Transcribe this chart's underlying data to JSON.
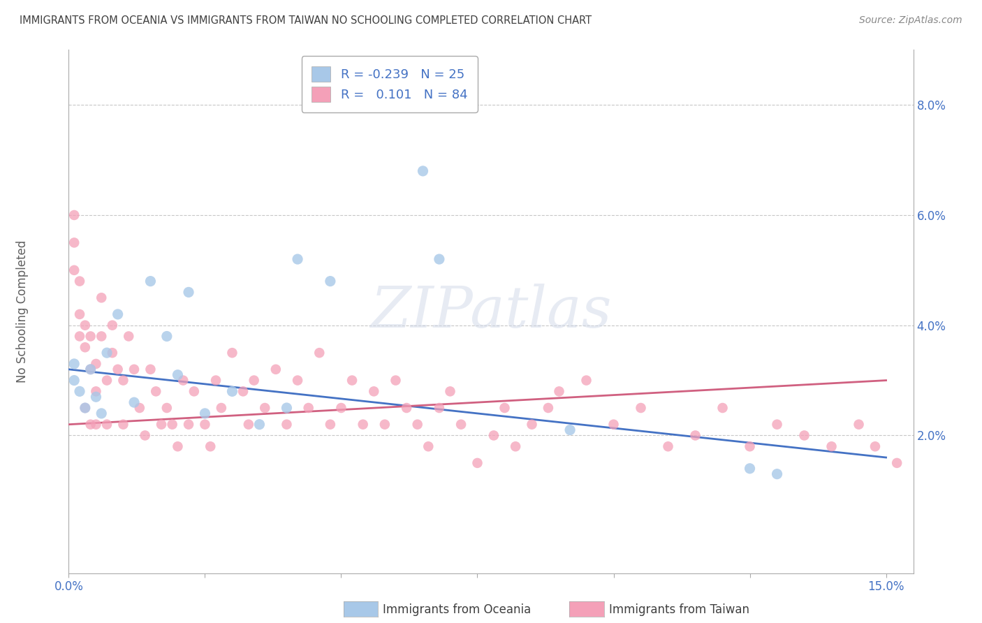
{
  "title": "IMMIGRANTS FROM OCEANIA VS IMMIGRANTS FROM TAIWAN NO SCHOOLING COMPLETED CORRELATION CHART",
  "source": "Source: ZipAtlas.com",
  "ylabel": "No Schooling Completed",
  "ytick_vals": [
    0.02,
    0.04,
    0.06,
    0.08
  ],
  "ytick_labels": [
    "2.0%",
    "4.0%",
    "6.0%",
    "8.0%"
  ],
  "xtick_vals": [
    0.0,
    0.025,
    0.05,
    0.075,
    0.1,
    0.125,
    0.15
  ],
  "xtick_labels": [
    "0.0%",
    "",
    "",
    "",
    "",
    "",
    "15.0%"
  ],
  "xlim": [
    0.0,
    0.155
  ],
  "ylim": [
    -0.005,
    0.09
  ],
  "legend_blue_r": "-0.239",
  "legend_blue_n": "25",
  "legend_pink_r": "0.101",
  "legend_pink_n": "84",
  "blue_scatter_color": "#a8c8e8",
  "pink_scatter_color": "#f4a0b8",
  "blue_line_color": "#4472c4",
  "pink_line_color": "#d06080",
  "bg_color": "#ffffff",
  "grid_color": "#c8c8c8",
  "title_color": "#404040",
  "label_color": "#606060",
  "axis_label_color": "#4472c4",
  "watermark_text": "ZIPatlas",
  "blue_line_y0": 0.032,
  "blue_line_y1": 0.016,
  "pink_line_y0": 0.022,
  "pink_line_y1": 0.03,
  "oceania_x": [
    0.001,
    0.001,
    0.002,
    0.003,
    0.004,
    0.005,
    0.006,
    0.007,
    0.009,
    0.012,
    0.015,
    0.018,
    0.02,
    0.022,
    0.025,
    0.03,
    0.035,
    0.04,
    0.042,
    0.048,
    0.065,
    0.068,
    0.092,
    0.125,
    0.13
  ],
  "oceania_y": [
    0.03,
    0.033,
    0.028,
    0.025,
    0.032,
    0.027,
    0.024,
    0.035,
    0.042,
    0.026,
    0.048,
    0.038,
    0.031,
    0.046,
    0.024,
    0.028,
    0.022,
    0.025,
    0.052,
    0.048,
    0.068,
    0.052,
    0.021,
    0.014,
    0.013
  ],
  "taiwan_x": [
    0.001,
    0.001,
    0.001,
    0.002,
    0.002,
    0.002,
    0.003,
    0.003,
    0.003,
    0.004,
    0.004,
    0.004,
    0.005,
    0.005,
    0.005,
    0.006,
    0.006,
    0.007,
    0.007,
    0.008,
    0.008,
    0.009,
    0.01,
    0.01,
    0.011,
    0.012,
    0.013,
    0.014,
    0.015,
    0.016,
    0.017,
    0.018,
    0.019,
    0.02,
    0.021,
    0.022,
    0.023,
    0.025,
    0.026,
    0.027,
    0.028,
    0.03,
    0.032,
    0.033,
    0.034,
    0.036,
    0.038,
    0.04,
    0.042,
    0.044,
    0.046,
    0.048,
    0.05,
    0.052,
    0.054,
    0.056,
    0.058,
    0.06,
    0.062,
    0.064,
    0.066,
    0.068,
    0.07,
    0.072,
    0.075,
    0.078,
    0.08,
    0.082,
    0.085,
    0.088,
    0.09,
    0.095,
    0.1,
    0.105,
    0.11,
    0.115,
    0.12,
    0.125,
    0.13,
    0.135,
    0.14,
    0.145,
    0.148,
    0.152
  ],
  "taiwan_y": [
    0.06,
    0.055,
    0.05,
    0.048,
    0.042,
    0.038,
    0.04,
    0.036,
    0.025,
    0.038,
    0.032,
    0.022,
    0.033,
    0.028,
    0.022,
    0.045,
    0.038,
    0.03,
    0.022,
    0.04,
    0.035,
    0.032,
    0.03,
    0.022,
    0.038,
    0.032,
    0.025,
    0.02,
    0.032,
    0.028,
    0.022,
    0.025,
    0.022,
    0.018,
    0.03,
    0.022,
    0.028,
    0.022,
    0.018,
    0.03,
    0.025,
    0.035,
    0.028,
    0.022,
    0.03,
    0.025,
    0.032,
    0.022,
    0.03,
    0.025,
    0.035,
    0.022,
    0.025,
    0.03,
    0.022,
    0.028,
    0.022,
    0.03,
    0.025,
    0.022,
    0.018,
    0.025,
    0.028,
    0.022,
    0.015,
    0.02,
    0.025,
    0.018,
    0.022,
    0.025,
    0.028,
    0.03,
    0.022,
    0.025,
    0.018,
    0.02,
    0.025,
    0.018,
    0.022,
    0.02,
    0.018,
    0.022,
    0.018,
    0.015
  ]
}
